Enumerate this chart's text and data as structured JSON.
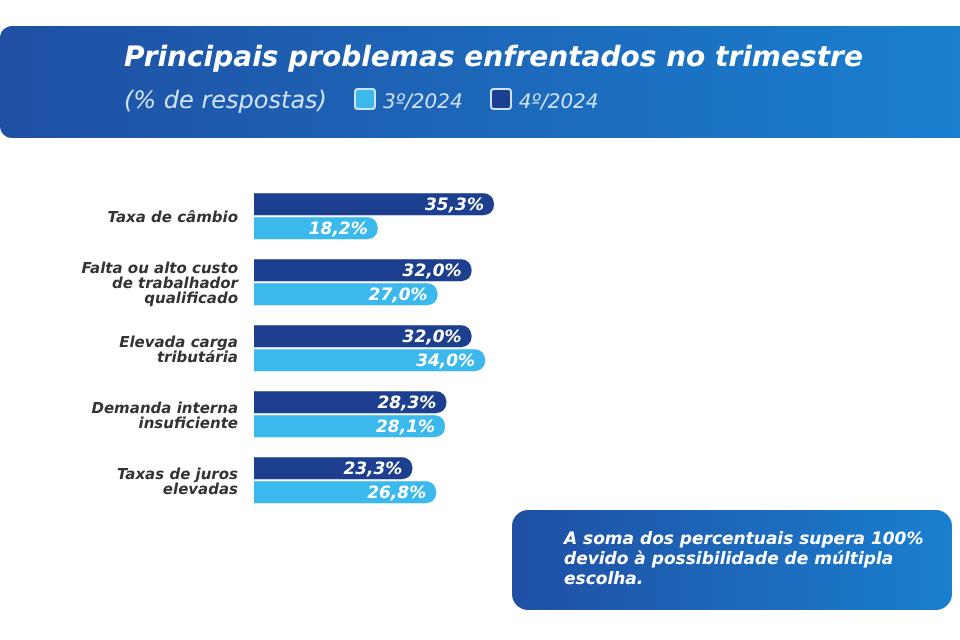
{
  "chart_data": {
    "type": "bar",
    "orientation": "horizontal",
    "title": "Principais problemas enfrentados no trimestre",
    "subtitle": "(% de respostas)",
    "categories": [
      "Taxa de câmbio",
      "Falta ou alto custo de trabalhador qualificado",
      "Elevada carga tributária",
      "Demanda interna insuficiente",
      "Taxas de juros elevadas"
    ],
    "series": [
      {
        "name": "3º/2024",
        "color": "#3bb8ec",
        "values": [
          18.2,
          27.0,
          34.0,
          28.1,
          26.8
        ],
        "value_labels": [
          "18,2%",
          "27,0%",
          "34,0%",
          "28,1%",
          "26,8%"
        ]
      },
      {
        "name": "4º/2024",
        "color": "#1c3f8f",
        "values": [
          35.3,
          32.0,
          32.0,
          28.3,
          23.3
        ],
        "value_labels": [
          "35,3%",
          "32,0%",
          "32,0%",
          "28,3%",
          "23,3%"
        ]
      }
    ],
    "tick_labels": "y",
    "grid": false,
    "legend": "top",
    "annotations": [
      "A soma dos percentuais supera 100% devido à possibilidade de múltipla escolha."
    ]
  }
}
